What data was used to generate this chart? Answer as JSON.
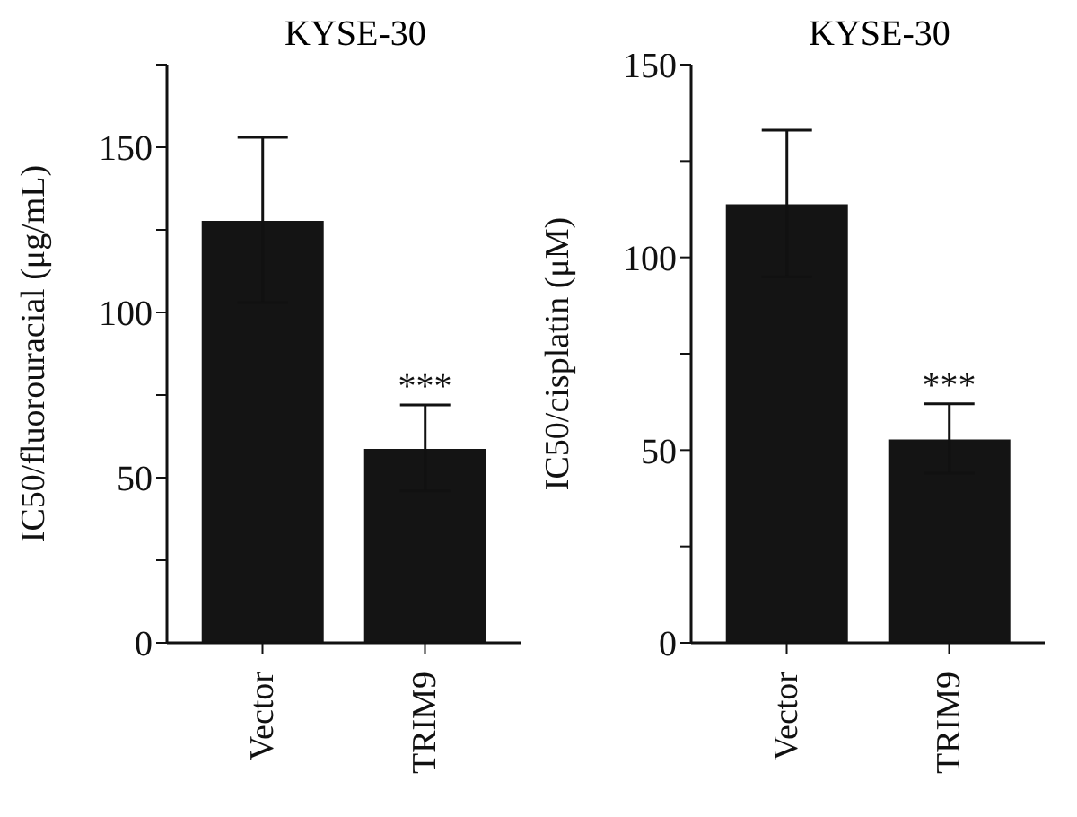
{
  "chart_data": [
    {
      "type": "bar",
      "title": "KYSE-30",
      "ylabel": "IC50/fluorouracial (μg/mL)",
      "categories": [
        "Vector",
        "TRIM9"
      ],
      "values": [
        128,
        59
      ],
      "errors": [
        25,
        13
      ],
      "color": "#141414",
      "ylim": [
        0,
        175
      ],
      "yticks": [
        0,
        {
          "value": 25,
          "label": null
        },
        50,
        {
          "value": 75,
          "label": null
        },
        100,
        {
          "value": 125,
          "label": null
        },
        150,
        {
          "value": 175,
          "label": null
        }
      ],
      "annotations": [
        {
          "text": "***",
          "x": "TRIM9",
          "y": 72
        }
      ]
    },
    {
      "type": "bar",
      "title": "KYSE-30",
      "ylabel": "IC50/cisplatin (μM)",
      "categories": [
        "Vector",
        "TRIM9"
      ],
      "values": [
        114,
        53
      ],
      "errors": [
        19,
        9
      ],
      "color": "#141414",
      "ylim": [
        0,
        150
      ],
      "yticks": [
        0,
        {
          "value": 25,
          "label": null
        },
        50,
        {
          "value": 75,
          "label": null
        },
        100,
        {
          "value": 125,
          "label": null
        },
        150
      ],
      "annotations": [
        {
          "text": "***",
          "x": "TRIM9",
          "y": 62
        }
      ]
    }
  ]
}
